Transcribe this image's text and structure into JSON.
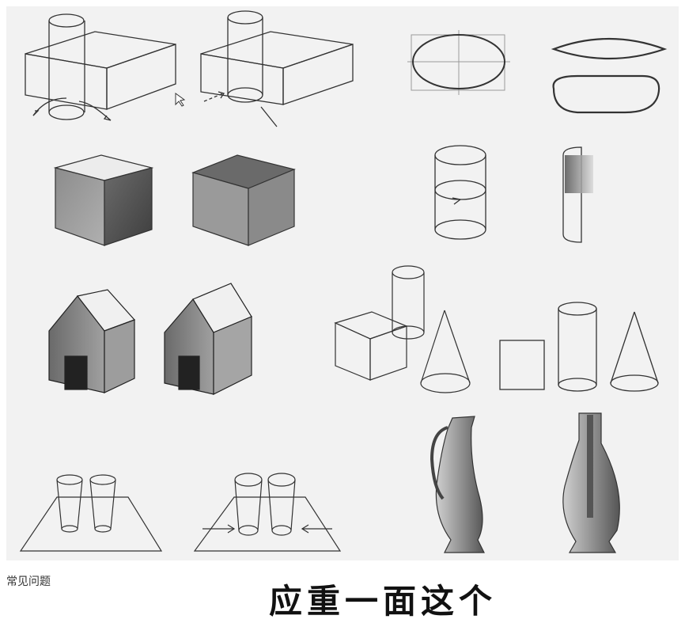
{
  "footer": {
    "caption": "常见问题",
    "big_title": "应重一面这个"
  },
  "colors": {
    "background": "#ffffff",
    "panel_background": "#f2f2f2",
    "line": "#333333",
    "light_face": "#e6e6e6",
    "mid_face": "#9a9a9a",
    "dark_face": "#555555"
  }
}
